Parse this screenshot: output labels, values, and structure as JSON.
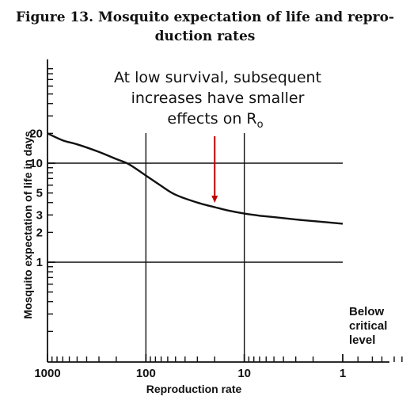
{
  "chart_data": {
    "type": "line",
    "title_line1": "Figure 13. Mosquito expectation of life and repro-",
    "title_line2": "duction rates",
    "xlabel": "Reproduction rate",
    "ylabel": "Mosquito expectation of life in days",
    "x_scale": "log",
    "x_reversed": true,
    "y_scale": "log",
    "x_ticks": [
      "1000",
      "100",
      "10",
      "1"
    ],
    "y_ticks": [
      "20",
      "10",
      "5",
      "3",
      "2",
      "1"
    ],
    "grid": true,
    "series": [
      {
        "x": [
          1000,
          700,
          500,
          300,
          200,
          150,
          100,
          70,
          50,
          30,
          20,
          15,
          10,
          7,
          5,
          3,
          2,
          1
        ],
        "y": [
          20,
          17,
          15.5,
          13,
          11,
          9.8,
          7.5,
          5.9,
          4.8,
          4.0,
          3.6,
          3.35,
          3.1,
          2.95,
          2.85,
          2.7,
          2.6,
          2.45
        ]
      }
    ],
    "annotation": {
      "line1": "At low survival, subsequent",
      "line2": "increases have smaller",
      "line3": "effects on R",
      "subscript": "o",
      "arrow_color": "#c00000",
      "arrow_x": 20,
      "arrow_y": 3.7
    },
    "note": {
      "line1": "Below",
      "line2": "critical",
      "line3": "level"
    }
  }
}
